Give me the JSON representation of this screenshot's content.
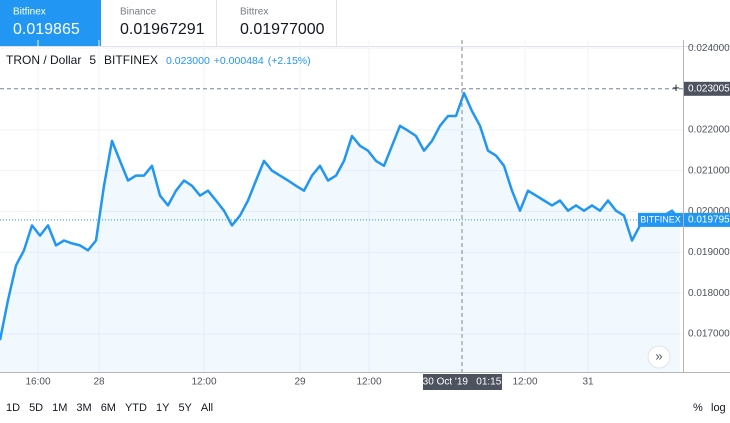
{
  "exchanges": [
    {
      "name": "Bitfinex",
      "price": "0.019865"
    },
    {
      "name": "Binance",
      "price": "0.01967291"
    },
    {
      "name": "Bittrex",
      "price": "0.01977000"
    }
  ],
  "chart_data": {
    "type": "line",
    "title": "TRON / Dollar",
    "interval": "5",
    "exchange": "BITFINEX",
    "quote": {
      "last": "0.023000",
      "change": "+0.000484",
      "change_pct": "(+2.15%)"
    },
    "x": [
      0,
      1,
      2,
      3,
      4,
      5,
      6,
      7,
      8,
      9,
      10,
      11,
      12,
      13,
      14,
      15,
      16,
      17,
      18,
      19,
      20,
      21,
      22,
      23,
      24,
      25,
      26,
      27,
      28,
      29,
      30,
      31,
      32,
      33,
      34,
      35,
      36,
      37,
      38,
      39,
      40,
      41,
      42,
      43,
      44,
      45,
      46,
      47,
      48,
      49,
      50,
      51,
      52,
      53,
      54,
      55,
      56,
      57,
      58,
      59,
      60,
      61,
      62,
      63,
      64,
      65,
      66,
      67,
      68,
      69,
      70,
      71,
      72,
      73,
      74,
      75,
      76,
      77,
      78,
      79,
      80,
      81,
      82,
      83,
      84,
      85
    ],
    "series": [
      {
        "name": "TRON / Dollar",
        "color": "#2196f3",
        "values": [
          0.01685,
          0.01783,
          0.01868,
          0.01905,
          0.01966,
          0.01941,
          0.01966,
          0.01917,
          0.01929,
          0.01922,
          0.01917,
          0.01905,
          0.01929,
          0.02063,
          0.02173,
          0.02124,
          0.02076,
          0.02088,
          0.02088,
          0.02112,
          0.02039,
          0.02015,
          0.02051,
          0.02076,
          0.02063,
          0.02039,
          0.02051,
          0.02027,
          0.02002,
          0.01966,
          0.0199,
          0.02027,
          0.02076,
          0.02124,
          0.021,
          0.02088,
          0.02076,
          0.02063,
          0.02051,
          0.02088,
          0.02112,
          0.02076,
          0.02088,
          0.02124,
          0.02185,
          0.02161,
          0.02149,
          0.02124,
          0.02112,
          0.02161,
          0.0221,
          0.02198,
          0.02185,
          0.02149,
          0.02173,
          0.0221,
          0.02234,
          0.02234,
          0.0229,
          0.02246,
          0.0221,
          0.02149,
          0.02137,
          0.02112,
          0.02051,
          0.02002,
          0.02051,
          0.02039,
          0.02027,
          0.02015,
          0.02027,
          0.02002,
          0.02015,
          0.02002,
          0.02015,
          0.02002,
          0.02027,
          0.02002,
          0.0199,
          0.01929,
          0.01966,
          0.01978,
          0.01978,
          0.0199,
          0.02002,
          0.01978
        ]
      }
    ],
    "xlim": [
      0,
      85.375
    ],
    "xticks": [
      {
        "value": 4.75,
        "label": "16:00"
      },
      {
        "value": 12.375,
        "label": "28"
      },
      {
        "value": 25.5,
        "label": "12:00"
      },
      {
        "value": 37.5,
        "label": "29"
      },
      {
        "value": 46.125,
        "label": "12:00"
      },
      {
        "value": 65.625,
        "label": "12:00"
      },
      {
        "value": 73.5,
        "label": "31"
      }
    ],
    "ylim": [
      0.01607,
      0.0242
    ],
    "yticks": [
      {
        "value": 0.024,
        "label": "0.024000"
      },
      {
        "value": 0.022,
        "label": "0.022000"
      },
      {
        "value": 0.021,
        "label": "0.021000"
      },
      {
        "value": 0.02,
        "label": "0.020000"
      },
      {
        "value": 0.019,
        "label": "0.019000"
      },
      {
        "value": 0.018,
        "label": "0.018000"
      },
      {
        "value": 0.017,
        "label": "0.017000"
      }
    ],
    "grid": true,
    "crosshair": {
      "x": 57.75,
      "x_label": "30 Oct '19   01:15",
      "y": 0.023005,
      "y_label": "0.023005"
    },
    "last_price": {
      "value": 0.019795,
      "label": "0.019795",
      "source": "BITFINEX"
    }
  },
  "ranges": [
    "1D",
    "5D",
    "1M",
    "3M",
    "6M",
    "YTD",
    "1Y",
    "5Y",
    "All"
  ],
  "scale_options": [
    "%",
    "log"
  ]
}
